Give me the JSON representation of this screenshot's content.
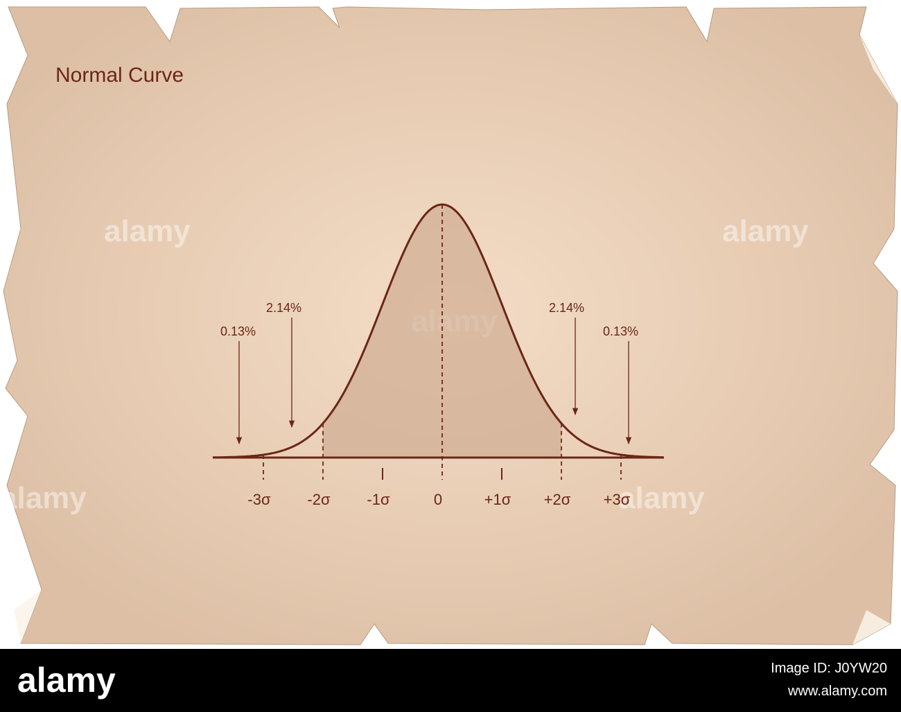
{
  "title": "Normal Curve",
  "annotations": [
    {
      "label": "0.13%"
    },
    {
      "label": "2.14%"
    },
    {
      "label": "2.14%"
    },
    {
      "label": "0.13%"
    }
  ],
  "axis_labels": [
    "-3σ",
    "-2σ",
    "-1σ",
    "0",
    "+1σ",
    "+2σ",
    "+3σ"
  ],
  "watermarks": [
    "alamy",
    "alamy",
    "alamy",
    "alamy",
    "alamy"
  ],
  "footer": {
    "logo": "alamy",
    "image_id": "Image ID: J0YW20",
    "site": "www.alamy.com"
  }
}
